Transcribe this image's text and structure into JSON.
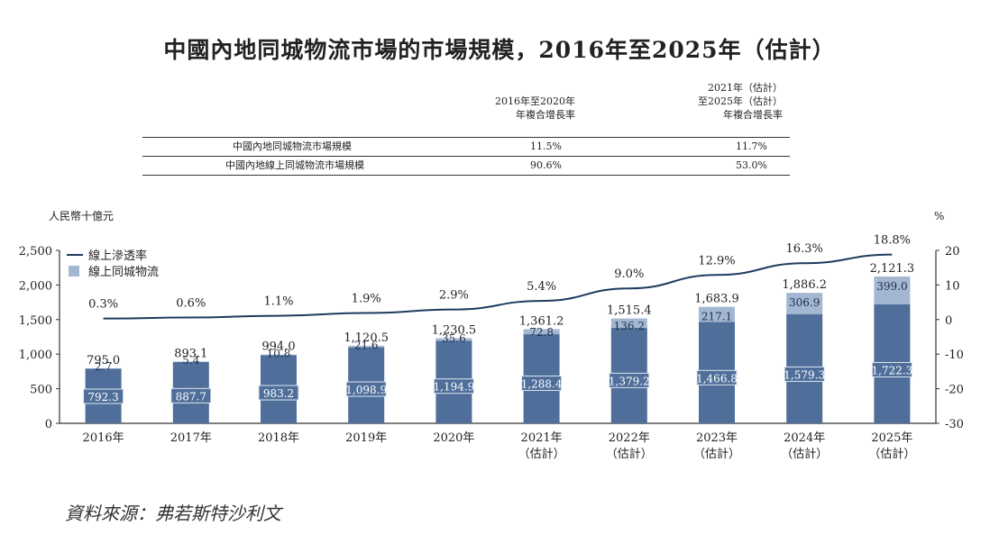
{
  "title": "中國內地同城物流市場的市場規模，2016年至2025年（估計）",
  "cagr_table": {
    "col1_header": [
      "2016年至2020年",
      "年複合增長率"
    ],
    "col2_header": [
      "2021年（估計）",
      "至2025年（估計）",
      "年複合增長率"
    ],
    "rows": [
      {
        "label": "中國內地同城物流市場規模",
        "c1": "11.5%",
        "c2": "11.7%"
      },
      {
        "label": "中國內地線上同城物流市場規模",
        "c1": "90.6%",
        "c2": "53.0%"
      }
    ]
  },
  "source": "資料來源：弗若斯特沙利文",
  "colors": {
    "offline_bar": "#4f6f9a",
    "online_bar": "#a3b7d3",
    "line": "#1f3a5f",
    "axis": "#333333"
  },
  "chart_data": {
    "type": "bar",
    "y_left_label": "人民幣十億元",
    "y_right_label": "%",
    "ylim": [
      0,
      2500
    ],
    "y2lim": [
      -30,
      20
    ],
    "y_ticks": [
      "0",
      "500",
      "1,000",
      "1,500",
      "2,000",
      "2,500"
    ],
    "y2_ticks": [
      "-30",
      "-20",
      "-10",
      "0",
      "10",
      "20"
    ],
    "categories": [
      "2016年",
      "2017年",
      "2018年",
      "2019年",
      "2020年",
      "2021年",
      "2022年",
      "2023年",
      "2024年",
      "2025年"
    ],
    "category_notes": [
      "",
      "",
      "",
      "",
      "",
      "（估計）",
      "（估計）",
      "（估計）",
      "（估計）",
      "（估計）"
    ],
    "legend": [
      "線上滲透率",
      "線上同城物流"
    ],
    "series": [
      {
        "name": "",
        "values": [
          792.3,
          887.7,
          983.2,
          1098.9,
          1194.9,
          1288.4,
          1379.2,
          1466.8,
          1579.3,
          1722.3
        ],
        "labels": [
          "792.3",
          "887.7",
          "983.2",
          "1,098.9",
          "1,194.9",
          "1,288.4",
          "1,379.2",
          "1,466.8",
          "1,579.3",
          "1,722.3"
        ]
      },
      {
        "name": "線上同城物流",
        "values": [
          2.7,
          5.4,
          10.8,
          21.6,
          35.6,
          72.8,
          136.2,
          217.1,
          306.9,
          399.0
        ],
        "labels": [
          "2.7",
          "5.4",
          "10.8",
          "21.6",
          "35.6",
          "72.8",
          "136.2",
          "217.1",
          "306.9",
          "399.0"
        ]
      },
      {
        "name": "線上滲透率",
        "axis": "right",
        "values": [
          0.3,
          0.6,
          1.1,
          1.9,
          2.9,
          5.4,
          9.0,
          12.9,
          16.3,
          18.8
        ],
        "labels": [
          "0.3%",
          "0.6%",
          "1.1%",
          "1.9%",
          "2.9%",
          "5.4%",
          "9.0%",
          "12.9%",
          "16.3%",
          "18.8%"
        ]
      }
    ],
    "totals": [
      795.0,
      893.1,
      994.0,
      1120.5,
      1230.5,
      1361.2,
      1515.4,
      1683.9,
      1886.2,
      2121.3
    ],
    "total_labels": [
      "795.0",
      "893.1",
      "994.0",
      "1,120.5",
      "1,230.5",
      "1,361.2",
      "1,515.4",
      "1,683.9",
      "1,886.2",
      "2,121.3"
    ]
  }
}
